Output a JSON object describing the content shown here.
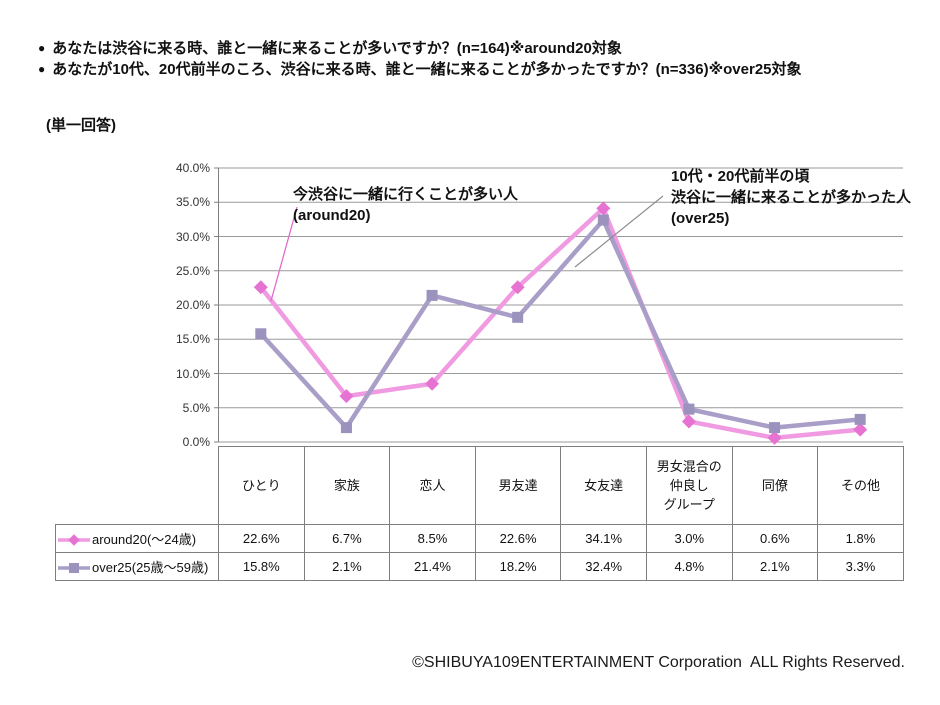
{
  "page": {
    "bullet_glyph": "●",
    "bullets": [
      "あなたは渋谷に来る時、誰と一緒に来ることが多いですか？(n=164)※around20対象",
      "あなたが10代、20代前半のころ、渋谷に来る時、誰と一緒に来ることが多かったですか？(n=336)※over25対象"
    ],
    "answer_type_label": "(単一回答)",
    "footer": "©SHIBUYA109ENTERTAINMENT Corporation  ALL Rights Reserved."
  },
  "chart_data": {
    "type": "line",
    "categories": [
      "ひとり",
      "家族",
      "恋人",
      "男友達",
      "女友達",
      "男女混合の\n仲良し\nグループ",
      "同僚",
      "その他"
    ],
    "series": [
      {
        "name": "around20(〜24歳)",
        "marker": "diamond",
        "line_color": "#f09ae2",
        "marker_color": "#e673d2",
        "values": [
          22.6,
          6.7,
          8.5,
          22.6,
          34.1,
          3.0,
          0.6,
          1.8
        ]
      },
      {
        "name": "over25(25歳〜59歳)",
        "marker": "square",
        "line_color": "#a89ec8",
        "marker_color": "#9b92bd",
        "values": [
          15.8,
          2.1,
          21.4,
          18.2,
          32.4,
          4.8,
          2.1,
          3.3
        ]
      }
    ],
    "ylim": [
      0,
      40
    ],
    "ytick_labels": [
      "40.0%",
      "35.0%",
      "30.0%",
      "25.0%",
      "20.0%",
      "15.0%",
      "10.0%",
      "5.0%",
      "0.0%"
    ],
    "grid": true,
    "grid_color": "#9a9a9a",
    "axis_color": "#808080",
    "legend_position": "table-left",
    "value_suffix": "%",
    "annotations": [
      {
        "text": "今渋谷に一緒に行くことが多い人\n(around20)",
        "target_series": "around20",
        "leader_color": "#e06ccc"
      },
      {
        "text": "10代・20代前半の頃\n渋谷に一緒に来ることが多かった人\n(over25)",
        "target_series": "over25",
        "leader_color": "#8c8c8c"
      }
    ]
  }
}
